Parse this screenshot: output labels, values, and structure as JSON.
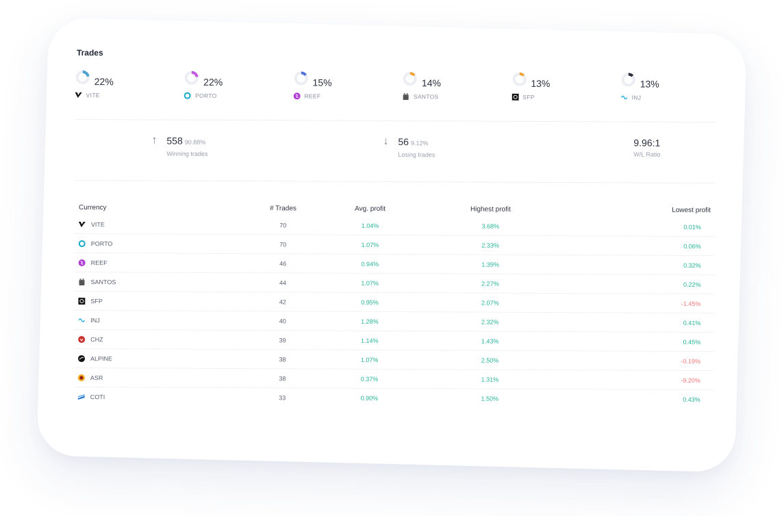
{
  "title": "Trades",
  "donuts": [
    {
      "pct": "22%",
      "fraction": 0.22,
      "symbol": "VITE",
      "color": "#4fa3d1",
      "icon": "vite-logo-icon"
    },
    {
      "pct": "22%",
      "fraction": 0.22,
      "symbol": "PORTO",
      "color": "#c35be0",
      "icon": "porto-logo-icon"
    },
    {
      "pct": "15%",
      "fraction": 0.15,
      "symbol": "REEF",
      "color": "#4e72d9",
      "icon": "reef-logo-icon"
    },
    {
      "pct": "14%",
      "fraction": 0.14,
      "symbol": "SANTOS",
      "color": "#f0a43c",
      "icon": "santos-logo-icon"
    },
    {
      "pct": "13%",
      "fraction": 0.13,
      "symbol": "SFP",
      "color": "#f0a43c",
      "icon": "sfp-logo-icon"
    },
    {
      "pct": "13%",
      "fraction": 0.13,
      "symbol": "INJ",
      "color": "#2b2f3a",
      "icon": "inj-logo-icon"
    }
  ],
  "stats": {
    "winning": {
      "value": "558",
      "pct": "90.88%",
      "label": "Winning trades",
      "icon": "arrow-up-icon"
    },
    "losing": {
      "value": "56",
      "pct": "9.12%",
      "label": "Losing trades",
      "icon": "arrow-down-icon"
    },
    "ratio": {
      "value": "9.96:1",
      "label": "W/L Ratio"
    }
  },
  "table": {
    "headers": [
      "Currency",
      "# Trades",
      "Avg. profit",
      "Highest profit",
      "Lowest profit"
    ],
    "rows": [
      {
        "currency": "VITE",
        "icon": "vite-logo-icon",
        "trades": "70",
        "avg": "1.04%",
        "high": "3.68%",
        "low": "0.01%",
        "low_neg": false
      },
      {
        "currency": "PORTO",
        "icon": "porto-logo-icon",
        "trades": "70",
        "avg": "1.07%",
        "high": "2.33%",
        "low": "0.06%",
        "low_neg": false
      },
      {
        "currency": "REEF",
        "icon": "reef-logo-icon",
        "trades": "46",
        "avg": "0.94%",
        "high": "1.39%",
        "low": "0.32%",
        "low_neg": false
      },
      {
        "currency": "SANTOS",
        "icon": "santos-logo-icon",
        "trades": "44",
        "avg": "1.07%",
        "high": "2.27%",
        "low": "0.22%",
        "low_neg": false
      },
      {
        "currency": "SFP",
        "icon": "sfp-logo-icon",
        "trades": "42",
        "avg": "0.95%",
        "high": "2.07%",
        "low": "-1.45%",
        "low_neg": true
      },
      {
        "currency": "INJ",
        "icon": "inj-logo-icon",
        "trades": "40",
        "avg": "1.28%",
        "high": "2.32%",
        "low": "0.41%",
        "low_neg": false
      },
      {
        "currency": "CHZ",
        "icon": "chz-logo-icon",
        "trades": "39",
        "avg": "1.14%",
        "high": "1.43%",
        "low": "0.45%",
        "low_neg": false
      },
      {
        "currency": "ALPINE",
        "icon": "alpine-logo-icon",
        "trades": "38",
        "avg": "1.07%",
        "high": "2.50%",
        "low": "-0.19%",
        "low_neg": true
      },
      {
        "currency": "ASR",
        "icon": "asr-logo-icon",
        "trades": "38",
        "avg": "0.37%",
        "high": "1.31%",
        "low": "-9.20%",
        "low_neg": true
      },
      {
        "currency": "COTI",
        "icon": "coti-logo-icon",
        "trades": "33",
        "avg": "0.90%",
        "high": "1.50%",
        "low": "0.43%",
        "low_neg": false
      }
    ]
  },
  "colors": {
    "positive": "#27b39a",
    "negative": "#f07a7a",
    "ring_track": "#eceef3"
  }
}
